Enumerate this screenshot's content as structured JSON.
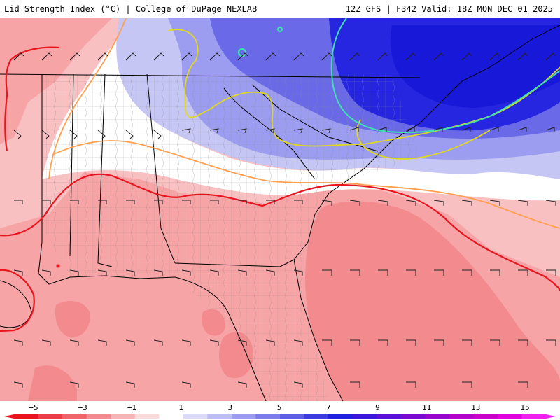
{
  "header": {
    "title_left": "Lid Strength Index (°C) | College of DuPage NEXLAB",
    "title_right": "12Z GFS | F342 Valid: 18Z MON DEC 01 2025"
  },
  "legend": {
    "labels": [
      "−5",
      "−3",
      "−1",
      "1",
      "3",
      "5",
      "7",
      "9",
      "11",
      "13",
      "15"
    ],
    "colors": [
      "#e8141e",
      "#ec3c44",
      "#f0646a",
      "#f38c90",
      "#f7b4b6",
      "#fadcdd",
      "#ffffff",
      "#dcdcfa",
      "#bcbcf6",
      "#9c9cf0",
      "#7c7cea",
      "#5c5ce6",
      "#3c3ce2",
      "#2020e0",
      "#3a16dc",
      "#5a10d8",
      "#780ad4",
      "#9606d0",
      "#b402cc",
      "#cc00cc",
      "#e000e0",
      "#f020f0"
    ]
  },
  "colors": {
    "contour_neg2": "#e8141e",
    "contour_zero": "#ffa050",
    "contour_pos2": "#e0d820",
    "contour_pos6": "#40e0b0",
    "border": "#000000",
    "county": "#8a8a8a"
  }
}
